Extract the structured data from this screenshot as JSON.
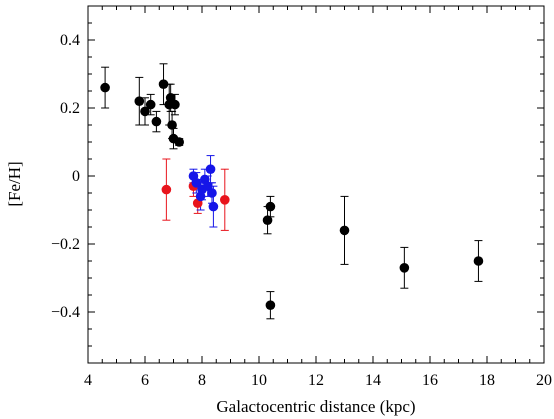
{
  "chart_data": {
    "type": "scatter",
    "xlabel": "Galactocentric distance (kpc)",
    "ylabel": "[Fe/H]",
    "xlim": [
      4,
      20
    ],
    "ylim": [
      -0.55,
      0.5
    ],
    "xticks": [
      4,
      6,
      8,
      10,
      12,
      14,
      16,
      18,
      20
    ],
    "yticks": [
      -0.4,
      -0.2,
      0,
      0.2,
      0.4
    ],
    "xtick_labels": [
      "4",
      "6",
      "8",
      "10",
      "12",
      "14",
      "16",
      "18",
      "20"
    ],
    "ytick_labels": [
      "−0.4",
      "−0.2",
      "0",
      "0.2",
      "0.4"
    ],
    "grid": false,
    "series": [
      {
        "color": "#000000",
        "points": [
          {
            "x": 4.6,
            "y": 0.26,
            "err": 0.06
          },
          {
            "x": 5.8,
            "y": 0.22,
            "err": 0.07
          },
          {
            "x": 6.0,
            "y": 0.19,
            "err": 0.04
          },
          {
            "x": 6.2,
            "y": 0.21,
            "err": 0.03
          },
          {
            "x": 6.4,
            "y": 0.16,
            "err": 0.03
          },
          {
            "x": 6.65,
            "y": 0.27,
            "err": 0.06
          },
          {
            "x": 6.85,
            "y": 0.21,
            "err": 0.06
          },
          {
            "x": 6.9,
            "y": 0.23,
            "err": 0.04
          },
          {
            "x": 6.95,
            "y": 0.15,
            "err": 0.04
          },
          {
            "x": 7.0,
            "y": 0.11,
            "err": 0.03
          },
          {
            "x": 7.05,
            "y": 0.21,
            "err": 0.03
          },
          {
            "x": 7.2,
            "y": 0.1,
            "err": 0.01
          },
          {
            "x": 10.3,
            "y": -0.13,
            "err": 0.04
          },
          {
            "x": 10.4,
            "y": -0.09,
            "err": 0.03
          },
          {
            "x": 10.4,
            "y": -0.38,
            "err": 0.04
          },
          {
            "x": 13.0,
            "y": -0.16,
            "err": 0.1
          },
          {
            "x": 15.1,
            "y": -0.27,
            "err": 0.06
          },
          {
            "x": 17.7,
            "y": -0.25,
            "err": 0.06
          }
        ]
      },
      {
        "color": "#e8141c",
        "points": [
          {
            "x": 6.75,
            "y": -0.04,
            "err": 0.09
          },
          {
            "x": 7.7,
            "y": -0.03,
            "err": 0.03
          },
          {
            "x": 7.85,
            "y": -0.08,
            "err": 0.03
          },
          {
            "x": 8.8,
            "y": -0.07,
            "err": 0.09
          }
        ]
      },
      {
        "color": "#1515e8",
        "points": [
          {
            "x": 7.7,
            "y": 0.0,
            "err": 0.02
          },
          {
            "x": 7.8,
            "y": -0.02,
            "err": 0.03
          },
          {
            "x": 7.95,
            "y": -0.06,
            "err": 0.04
          },
          {
            "x": 8.0,
            "y": -0.04,
            "err": 0.03
          },
          {
            "x": 8.1,
            "y": -0.01,
            "err": 0.03
          },
          {
            "x": 8.2,
            "y": -0.03,
            "err": 0.03
          },
          {
            "x": 8.3,
            "y": 0.02,
            "err": 0.04
          },
          {
            "x": 8.35,
            "y": -0.05,
            "err": 0.03
          },
          {
            "x": 8.4,
            "y": -0.09,
            "err": 0.06
          }
        ]
      }
    ]
  }
}
